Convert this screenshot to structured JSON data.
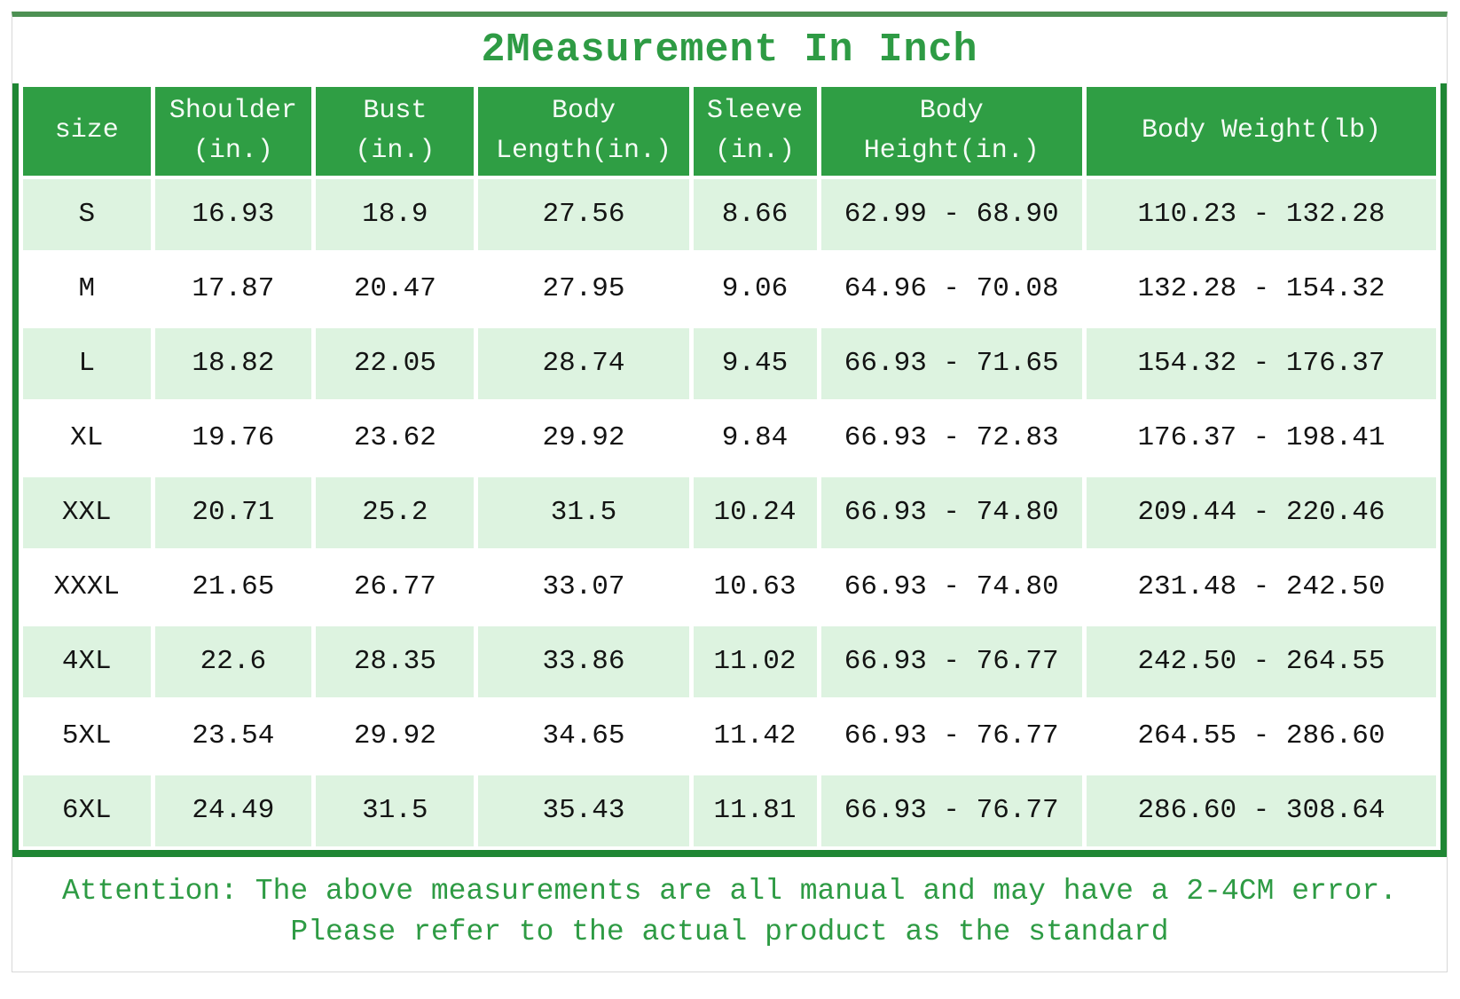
{
  "title": "2Measurement In Inch",
  "chart_data": {
    "type": "table",
    "columns": [
      "size",
      "Shoulder\n(in.)",
      "Bust\n(in.)",
      "Body\nLength(in.)",
      "Sleeve\n(in.)",
      "Body\nHeight(in.)",
      "Body Weight(lb)"
    ],
    "rows": [
      [
        "S",
        "16.93",
        "18.9",
        "27.56",
        "8.66",
        "62.99 - 68.90",
        "110.23 - 132.28"
      ],
      [
        "M",
        "17.87",
        "20.47",
        "27.95",
        "9.06",
        "64.96 - 70.08",
        "132.28 - 154.32"
      ],
      [
        "L",
        "18.82",
        "22.05",
        "28.74",
        "9.45",
        "66.93 - 71.65",
        "154.32 - 176.37"
      ],
      [
        "XL",
        "19.76",
        "23.62",
        "29.92",
        "9.84",
        "66.93 - 72.83",
        "176.37 - 198.41"
      ],
      [
        "XXL",
        "20.71",
        "25.2",
        "31.5",
        "10.24",
        "66.93 - 74.80",
        "209.44 - 220.46"
      ],
      [
        "XXXL",
        "21.65",
        "26.77",
        "33.07",
        "10.63",
        "66.93 - 74.80",
        "231.48 - 242.50"
      ],
      [
        "4XL",
        "22.6",
        "28.35",
        "33.86",
        "11.02",
        "66.93 - 76.77",
        "242.50 - 264.55"
      ],
      [
        "5XL",
        "23.54",
        "29.92",
        "34.65",
        "11.42",
        "66.93 - 76.77",
        "264.55 - 286.60"
      ],
      [
        "6XL",
        "24.49",
        "31.5",
        "35.43",
        "11.81",
        "66.93 - 76.77",
        "286.60 - 308.64"
      ]
    ]
  },
  "footer": {
    "line1": "Attention: The above measurements are all manual and may have a 2-4CM error.",
    "line2": "Please refer to the actual product as the standard"
  },
  "colors": {
    "header_green": "#2f9e44",
    "light_cell_green": "#ddf3e0",
    "dark_border_green": "#1f8634",
    "top_line_green": "#4d9153",
    "text_green": "#2e9b44",
    "outer_border_gray": "#d8d8d8",
    "data_text": "#141414"
  }
}
